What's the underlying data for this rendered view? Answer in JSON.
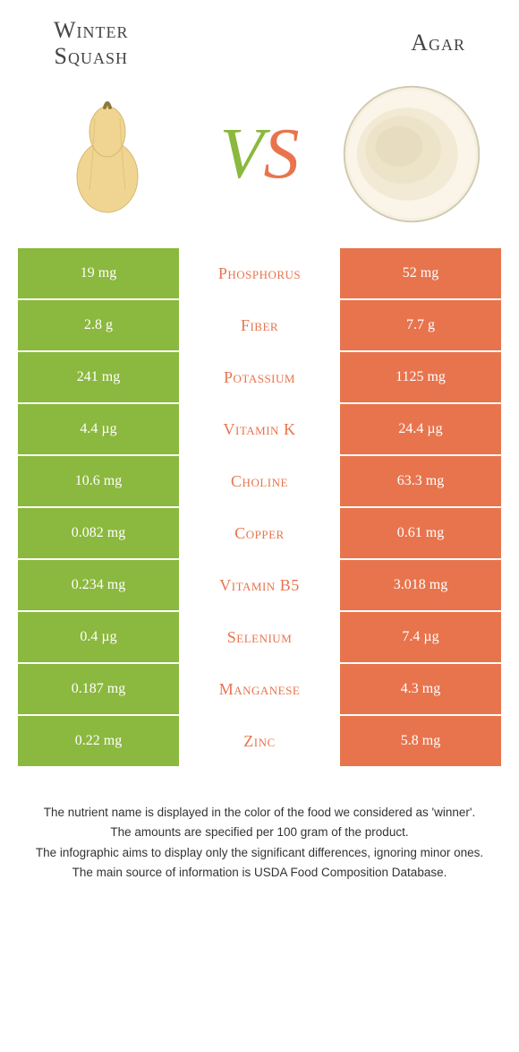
{
  "colors": {
    "green": "#8bb83e",
    "orange": "#e8744d",
    "white": "#ffffff",
    "text": "#333333"
  },
  "left": {
    "title_line1": "Winter",
    "title_line2": "Squash"
  },
  "right": {
    "title": "Agar"
  },
  "vs": {
    "v": "V",
    "s": "S"
  },
  "rows": [
    {
      "nutrient": "Phosphorus",
      "left": "19 mg",
      "right": "52 mg",
      "winner": "right"
    },
    {
      "nutrient": "Fiber",
      "left": "2.8 g",
      "right": "7.7 g",
      "winner": "right"
    },
    {
      "nutrient": "Potassium",
      "left": "241 mg",
      "right": "1125 mg",
      "winner": "right"
    },
    {
      "nutrient": "Vitamin K",
      "left": "4.4 µg",
      "right": "24.4 µg",
      "winner": "right"
    },
    {
      "nutrient": "Choline",
      "left": "10.6 mg",
      "right": "63.3 mg",
      "winner": "right"
    },
    {
      "nutrient": "Copper",
      "left": "0.082 mg",
      "right": "0.61 mg",
      "winner": "right"
    },
    {
      "nutrient": "Vitamin B5",
      "left": "0.234 mg",
      "right": "3.018 mg",
      "winner": "right"
    },
    {
      "nutrient": "Selenium",
      "left": "0.4 µg",
      "right": "7.4 µg",
      "winner": "right"
    },
    {
      "nutrient": "Manganese",
      "left": "0.187 mg",
      "right": "4.3 mg",
      "winner": "right"
    },
    {
      "nutrient": "Zinc",
      "left": "0.22 mg",
      "right": "5.8 mg",
      "winner": "right"
    }
  ],
  "footer": {
    "line1": "The nutrient name is displayed in the color of the food we considered as 'winner'.",
    "line2": "The amounts are specified per 100 gram of the product.",
    "line3": "The infographic aims to display only the significant differences, ignoring minor ones.",
    "line4": "The main source of information is USDA Food Composition Database."
  }
}
